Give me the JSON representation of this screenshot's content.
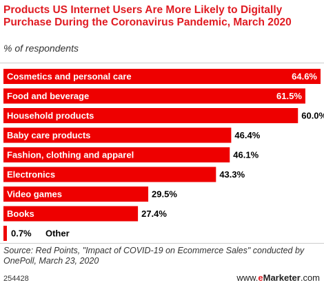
{
  "header": {
    "title": "Products US Internet Users Are More Likely to Digitally Purchase During the Coronavirus Pandemic, March 2020",
    "subtitle": "% of respondents"
  },
  "chart_data": {
    "type": "bar",
    "orientation": "horizontal",
    "title": "Products US Internet Users Are More Likely to Digitally Purchase During the Coronavirus Pandemic, March 2020",
    "subtitle": "% of respondents",
    "categories": [
      "Cosmetics and personal care",
      "Food and beverage",
      "Household products",
      "Baby care products",
      "Fashion, clothing and apparel",
      "Electronics",
      "Video games",
      "Books",
      "Other"
    ],
    "values": [
      64.6,
      61.5,
      60.0,
      46.4,
      46.1,
      43.3,
      29.5,
      27.4,
      0.7
    ],
    "value_labels": [
      "64.6%",
      "61.5%",
      "60.0%",
      "46.4%",
      "46.1%",
      "43.3%",
      "29.5%",
      "27.4%",
      "0.7%"
    ],
    "xlim": [
      0,
      64.6
    ],
    "grid": false,
    "legend": "none",
    "bar_color": "#ee0000",
    "label_color_inside": "#ffffff",
    "label_color_outside": "#000000"
  },
  "footer": {
    "source": "Source: Red Points, \"Impact of COVID-19 on Ecommerce Sales\" conducted by OnePoll, March 23, 2020",
    "chart_id": "254428",
    "brand_prefix": "www.",
    "brand_e": "e",
    "brand_rest": "Marketer",
    "brand_suffix": ".com"
  },
  "colors": {
    "accent": "#e01b22",
    "bar": "#ee0000"
  }
}
